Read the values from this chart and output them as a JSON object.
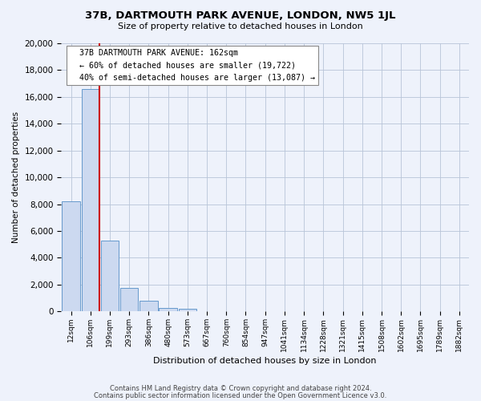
{
  "title": "37B, DARTMOUTH PARK AVENUE, LONDON, NW5 1JL",
  "subtitle": "Size of property relative to detached houses in London",
  "xlabel": "Distribution of detached houses by size in London",
  "ylabel": "Number of detached properties",
  "footnote1": "Contains HM Land Registry data © Crown copyright and database right 2024.",
  "footnote2": "Contains public sector information licensed under the Open Government Licence v3.0.",
  "bar_labels": [
    "12sqm",
    "106sqm",
    "199sqm",
    "293sqm",
    "386sqm",
    "480sqm",
    "573sqm",
    "667sqm",
    "760sqm",
    "854sqm",
    "947sqm",
    "1041sqm",
    "1134sqm",
    "1228sqm",
    "1321sqm",
    "1415sqm",
    "1508sqm",
    "1602sqm",
    "1695sqm",
    "1789sqm",
    "1882sqm"
  ],
  "bar_values": [
    8200,
    16600,
    5300,
    1750,
    780,
    240,
    200,
    0,
    0,
    0,
    0,
    0,
    0,
    0,
    0,
    0,
    0,
    0,
    0,
    0,
    0
  ],
  "bar_color": "#ccd9f0",
  "bar_edge_color": "#6699cc",
  "property_sqm": 162,
  "property_label": "37B DARTMOUTH PARK AVENUE: 162sqm",
  "smaller_pct": 60,
  "smaller_count": 19722,
  "larger_pct": 40,
  "larger_count": 13087,
  "line_color": "#cc0000",
  "annotation_box_edge": "#888888",
  "ylim": [
    0,
    20000
  ],
  "yticks": [
    0,
    2000,
    4000,
    6000,
    8000,
    10000,
    12000,
    14000,
    16000,
    18000,
    20000
  ],
  "background_color": "#eef2fb",
  "grid_color": "#b8c4d8"
}
